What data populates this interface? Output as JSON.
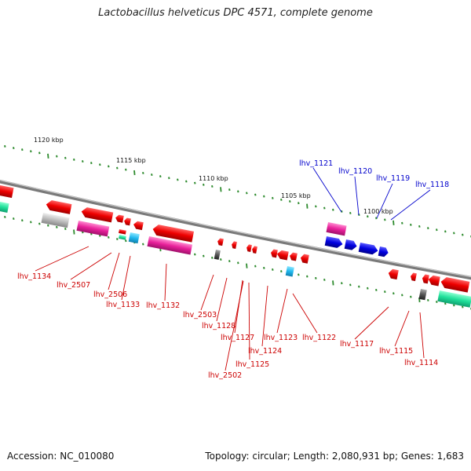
{
  "title": "Lactobacillus helveticus DPC 4571, complete genome",
  "footer": {
    "accession": "Accession: NC_010080",
    "topology": "Topology: circular; Length: 2,080,931 bp; Genes: 1,683"
  },
  "scale_labels": [
    "1120 kbp",
    "1115 kbp",
    "1110 kbp",
    "1105 kbp",
    "1100 kbp"
  ],
  "gene_labels_top": [
    "lhv_1121",
    "lhv_1120",
    "lhv_1119",
    "lhv_1118"
  ],
  "gene_labels_bottom": [
    "lhv_1134",
    "lhv_2507",
    "lhv_2506",
    "lhv_1133",
    "lhv_1132",
    "lhv_2503",
    "lhv_1128",
    "lhv_1127",
    "lhv_2502",
    "lhv_1125",
    "lhv_1124",
    "lhv_1123",
    "lhv_1122",
    "lhv_1117",
    "lhv_1115",
    "lhv_1114"
  ],
  "colors": {
    "forward_label": "#0000cc",
    "reverse_label": "#cc0000",
    "backbone": "#888888",
    "tick": "#2e8b2e"
  }
}
